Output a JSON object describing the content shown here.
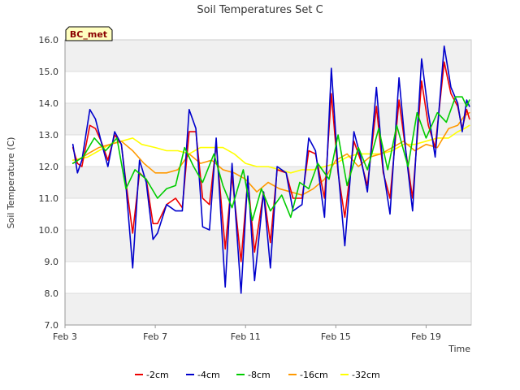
{
  "chart_data": {
    "type": "line",
    "title": "Soil Temperatures Set C",
    "xlabel": "Time",
    "ylabel": "Soil Temperature (C)",
    "badge": "BC_met",
    "x_unit": "day of February",
    "xlim": [
      3.0,
      21.0
    ],
    "ylim": [
      7.0,
      16.0
    ],
    "x_ticks": [
      {
        "value": 3,
        "label": "Feb 3"
      },
      {
        "value": 7,
        "label": "Feb 7"
      },
      {
        "value": 11,
        "label": "Feb 11"
      },
      {
        "value": 15,
        "label": "Feb 15"
      },
      {
        "value": 19,
        "label": "Feb 19"
      }
    ],
    "y_ticks": [
      {
        "value": 7,
        "label": "7.0"
      },
      {
        "value": 8,
        "label": "8.0"
      },
      {
        "value": 9,
        "label": "9.0"
      },
      {
        "value": 10,
        "label": "10.0"
      },
      {
        "value": 11,
        "label": "11.0"
      },
      {
        "value": 12,
        "label": "12.0"
      },
      {
        "value": 13,
        "label": "13.0"
      },
      {
        "value": 14,
        "label": "14.0"
      },
      {
        "value": 15,
        "label": "15.0"
      },
      {
        "value": 16,
        "label": "16.0"
      }
    ],
    "bands": [
      [
        7,
        8
      ],
      [
        9,
        10
      ],
      [
        11,
        12
      ],
      [
        13,
        14
      ],
      [
        15,
        16
      ]
    ],
    "series": [
      {
        "name": "-2cm",
        "color": "#ee0000",
        "x": [
          3.35,
          3.55,
          3.75,
          4.1,
          4.35,
          4.6,
          4.9,
          5.2,
          5.5,
          5.7,
          6.0,
          6.3,
          6.6,
          6.9,
          7.1,
          7.5,
          7.7,
          7.9,
          8.2,
          8.5,
          8.8,
          9.1,
          9.4,
          9.7,
          10.1,
          10.4,
          10.8,
          11.1,
          11.4,
          11.8,
          12.1,
          12.4,
          12.8,
          13.1,
          13.5,
          13.8,
          14.1,
          14.5,
          14.8,
          15.1,
          15.4,
          15.8,
          16.1,
          16.4,
          16.8,
          17.1,
          17.4,
          17.8,
          18.1,
          18.4,
          18.8,
          19.1,
          19.4,
          19.8,
          20.1,
          20.4,
          20.6,
          20.8,
          20.92
        ],
        "y": [
          12.6,
          12.1,
          12.0,
          13.3,
          13.2,
          12.8,
          12.2,
          13.0,
          12.7,
          11.5,
          9.9,
          11.8,
          11.6,
          10.2,
          10.2,
          10.8,
          10.9,
          11.0,
          10.7,
          13.1,
          13.1,
          11.0,
          10.8,
          12.7,
          9.4,
          11.7,
          9.0,
          11.6,
          9.3,
          11.2,
          9.6,
          11.9,
          11.8,
          11.0,
          11.0,
          12.5,
          12.4,
          11.0,
          14.3,
          11.8,
          10.4,
          12.8,
          12.2,
          11.4,
          13.9,
          11.8,
          11.0,
          14.1,
          12.5,
          11.0,
          14.7,
          13.3,
          12.6,
          15.3,
          14.3,
          13.9,
          13.2,
          13.8,
          13.5
        ]
      },
      {
        "name": "-4cm",
        "color": "#0000cc",
        "x": [
          3.35,
          3.55,
          3.75,
          4.1,
          4.35,
          4.6,
          4.9,
          5.2,
          5.5,
          5.7,
          6.0,
          6.3,
          6.6,
          6.9,
          7.1,
          7.5,
          7.7,
          7.9,
          8.2,
          8.5,
          8.8,
          9.1,
          9.4,
          9.7,
          10.1,
          10.4,
          10.8,
          11.1,
          11.4,
          11.8,
          12.1,
          12.4,
          12.8,
          13.1,
          13.5,
          13.8,
          14.1,
          14.5,
          14.8,
          15.1,
          15.4,
          15.8,
          16.1,
          16.4,
          16.8,
          17.1,
          17.4,
          17.8,
          18.1,
          18.4,
          18.8,
          19.1,
          19.4,
          19.8,
          20.1,
          20.4,
          20.6,
          20.8,
          20.92
        ],
        "y": [
          12.7,
          11.8,
          12.2,
          13.8,
          13.5,
          12.8,
          12.0,
          13.1,
          12.7,
          11.4,
          8.8,
          12.2,
          11.5,
          9.7,
          9.9,
          10.8,
          10.7,
          10.6,
          10.6,
          13.8,
          13.2,
          10.1,
          10.0,
          12.9,
          8.2,
          12.1,
          8.0,
          11.7,
          8.4,
          11.2,
          8.8,
          12.0,
          11.8,
          10.6,
          10.8,
          12.9,
          12.5,
          10.4,
          15.1,
          11.9,
          9.5,
          13.1,
          12.3,
          11.2,
          14.5,
          11.9,
          10.5,
          14.8,
          12.5,
          10.6,
          15.4,
          13.7,
          12.3,
          15.8,
          14.5,
          14.0,
          13.1,
          14.1,
          13.9
        ]
      },
      {
        "name": "-8cm",
        "color": "#00cc00",
        "x": [
          3.35,
          3.8,
          4.3,
          4.8,
          5.3,
          5.7,
          6.1,
          6.6,
          7.1,
          7.5,
          7.9,
          8.3,
          8.7,
          9.1,
          9.6,
          10.0,
          10.4,
          10.9,
          11.3,
          11.7,
          12.1,
          12.6,
          13.0,
          13.4,
          13.8,
          14.2,
          14.7,
          15.1,
          15.5,
          16.0,
          16.4,
          16.9,
          17.3,
          17.7,
          18.2,
          18.6,
          19.0,
          19.5,
          19.9,
          20.3,
          20.6,
          20.8,
          20.92
        ],
        "y": [
          12.1,
          12.3,
          12.9,
          12.5,
          12.9,
          11.3,
          11.9,
          11.6,
          11.0,
          11.3,
          11.4,
          12.6,
          12.0,
          11.5,
          12.4,
          11.4,
          10.7,
          11.9,
          10.3,
          11.3,
          10.6,
          11.1,
          10.4,
          11.5,
          11.3,
          12.1,
          11.6,
          13.0,
          11.4,
          12.6,
          11.9,
          13.2,
          11.9,
          13.3,
          12.0,
          13.7,
          12.9,
          13.7,
          13.4,
          14.2,
          14.2,
          13.9,
          14.1
        ]
      },
      {
        "name": "-16cm",
        "color": "#ff9900",
        "x": [
          3.35,
          4.0,
          4.5,
          5.0,
          5.5,
          6.0,
          6.5,
          7.0,
          7.5,
          8.0,
          8.5,
          9.0,
          9.5,
          10.0,
          10.5,
          11.0,
          11.5,
          12.0,
          12.5,
          13.0,
          13.5,
          14.0,
          14.5,
          15.0,
          15.5,
          16.0,
          16.5,
          17.0,
          17.5,
          18.0,
          18.5,
          19.0,
          19.5,
          20.0,
          20.4,
          20.7,
          20.92
        ],
        "y": [
          12.1,
          12.4,
          12.6,
          12.7,
          12.8,
          12.5,
          12.1,
          11.8,
          11.8,
          11.9,
          12.4,
          12.1,
          12.2,
          11.9,
          11.8,
          11.6,
          11.2,
          11.5,
          11.3,
          11.2,
          11.1,
          11.3,
          11.6,
          12.2,
          12.4,
          12.0,
          12.3,
          12.4,
          12.6,
          12.8,
          12.5,
          12.7,
          12.6,
          13.2,
          13.3,
          13.6,
          13.7
        ]
      },
      {
        "name": "-32cm",
        "color": "#ffff00",
        "x": [
          3.35,
          4.0,
          4.5,
          5.0,
          5.5,
          6.0,
          6.4,
          7.0,
          7.5,
          8.0,
          8.5,
          9.0,
          9.5,
          10.0,
          10.5,
          11.0,
          11.5,
          12.0,
          12.5,
          13.0,
          13.5,
          14.0,
          14.5,
          15.0,
          15.5,
          16.0,
          16.5,
          17.0,
          17.5,
          18.0,
          18.5,
          19.0,
          19.5,
          20.0,
          20.4,
          20.7,
          20.92
        ],
        "y": [
          12.2,
          12.3,
          12.5,
          12.7,
          12.8,
          12.9,
          12.7,
          12.6,
          12.5,
          12.5,
          12.4,
          12.6,
          12.6,
          12.6,
          12.4,
          12.1,
          12.0,
          12.0,
          11.9,
          11.8,
          11.9,
          11.9,
          12.0,
          12.1,
          12.3,
          12.4,
          12.4,
          12.4,
          12.5,
          12.7,
          12.7,
          12.8,
          12.9,
          12.9,
          13.1,
          13.2,
          13.3
        ]
      }
    ],
    "legend_position": "bottom-center"
  }
}
